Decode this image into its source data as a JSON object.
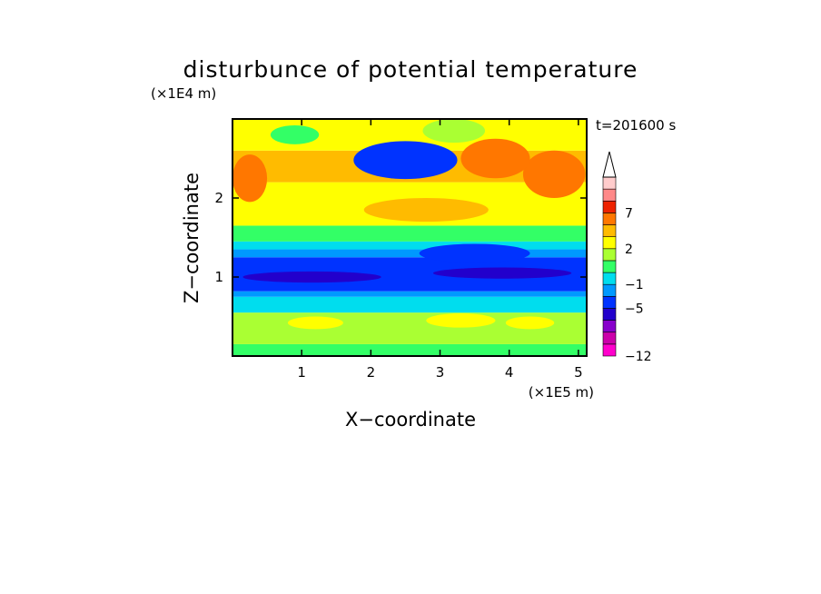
{
  "chart_data": {
    "type": "heatmap",
    "title": "disturbunce of potential temperature",
    "time_label": "t=201600 s",
    "xlabel": "X−coordinate",
    "ylabel": "Z−coordinate",
    "x_unit": "(×1E5 m)",
    "y_unit": "(×1E4 m)",
    "xlim": [
      0,
      5.12
    ],
    "ylim": [
      0,
      3.0
    ],
    "x_ticks": [
      1,
      2,
      3,
      4,
      5
    ],
    "x_tick_labels": [
      "1",
      "2",
      "3",
      "4",
      "5"
    ],
    "y_ticks": [
      1,
      2
    ],
    "y_tick_labels": [
      "1",
      "2"
    ],
    "colorbar": {
      "levels": [
        -12,
        -11,
        -9,
        -7,
        -5,
        -3,
        -1,
        0,
        1,
        2,
        3,
        5,
        7,
        9,
        11
      ],
      "labeled_ticks": [
        {
          "value": -12,
          "label": "−12"
        },
        {
          "value": -5,
          "label": "−5"
        },
        {
          "value": -1,
          "label": "−1"
        },
        {
          "value": 2,
          "label": "2"
        },
        {
          "value": 7,
          "label": "7"
        }
      ],
      "colors": [
        "#ff00cc",
        "#cc00aa",
        "#8800cc",
        "#2200cc",
        "#0033ff",
        "#0099ff",
        "#00ddee",
        "#33ff66",
        "#aaff33",
        "#ffff00",
        "#ffbb00",
        "#ff7700",
        "#ee2200",
        "#ff8888",
        "#ffcccc"
      ],
      "extend": "max"
    },
    "bands": [
      {
        "z_min": 0.0,
        "z_max": 0.15,
        "level_index": 7
      },
      {
        "z_min": 0.15,
        "z_max": 0.55,
        "level_index": 8
      },
      {
        "z_min": 0.55,
        "z_max": 0.75,
        "level_index": 6
      },
      {
        "z_min": 0.75,
        "z_max": 0.82,
        "level_index": 5
      },
      {
        "z_min": 0.82,
        "z_max": 1.25,
        "level_index": 4
      },
      {
        "z_min": 1.25,
        "z_max": 1.35,
        "level_index": 5
      },
      {
        "z_min": 1.35,
        "z_max": 1.45,
        "level_index": 6
      },
      {
        "z_min": 1.45,
        "z_max": 1.65,
        "level_index": 7
      },
      {
        "z_min": 1.65,
        "z_max": 2.2,
        "level_index": 9
      },
      {
        "z_min": 2.2,
        "z_max": 2.6,
        "level_index": 10
      },
      {
        "z_min": 2.6,
        "z_max": 3.0,
        "level_index": 9
      }
    ],
    "features": [
      {
        "x": 2.5,
        "z": 2.48,
        "rx": 0.55,
        "rz": 0.16,
        "level_index": 3
      },
      {
        "x": 2.5,
        "z": 2.48,
        "rx": 0.75,
        "rz": 0.24,
        "level_index": 4
      },
      {
        "x": 0.25,
        "z": 2.25,
        "rx": 0.25,
        "rz": 0.3,
        "level_index": 11
      },
      {
        "x": 4.65,
        "z": 2.3,
        "rx": 0.45,
        "rz": 0.3,
        "level_index": 11
      },
      {
        "x": 3.8,
        "z": 2.5,
        "rx": 0.5,
        "rz": 0.25,
        "level_index": 11
      },
      {
        "x": 2.8,
        "z": 1.85,
        "rx": 0.9,
        "rz": 0.15,
        "level_index": 10
      },
      {
        "x": 3.2,
        "z": 2.85,
        "rx": 0.45,
        "rz": 0.15,
        "level_index": 8
      },
      {
        "x": 0.9,
        "z": 2.8,
        "rx": 0.35,
        "rz": 0.12,
        "level_index": 7
      },
      {
        "x": 3.5,
        "z": 1.3,
        "rx": 0.8,
        "rz": 0.12,
        "level_index": 4
      },
      {
        "x": 1.2,
        "z": 0.42,
        "rx": 0.4,
        "rz": 0.08,
        "level_index": 9
      },
      {
        "x": 3.3,
        "z": 0.45,
        "rx": 0.5,
        "rz": 0.09,
        "level_index": 9
      },
      {
        "x": 4.3,
        "z": 0.42,
        "rx": 0.35,
        "rz": 0.08,
        "level_index": 9
      },
      {
        "x": 1.15,
        "z": 1.0,
        "rx": 1.0,
        "rz": 0.07,
        "level_index": 3
      },
      {
        "x": 3.9,
        "z": 1.05,
        "rx": 1.0,
        "rz": 0.07,
        "level_index": 3
      }
    ]
  }
}
